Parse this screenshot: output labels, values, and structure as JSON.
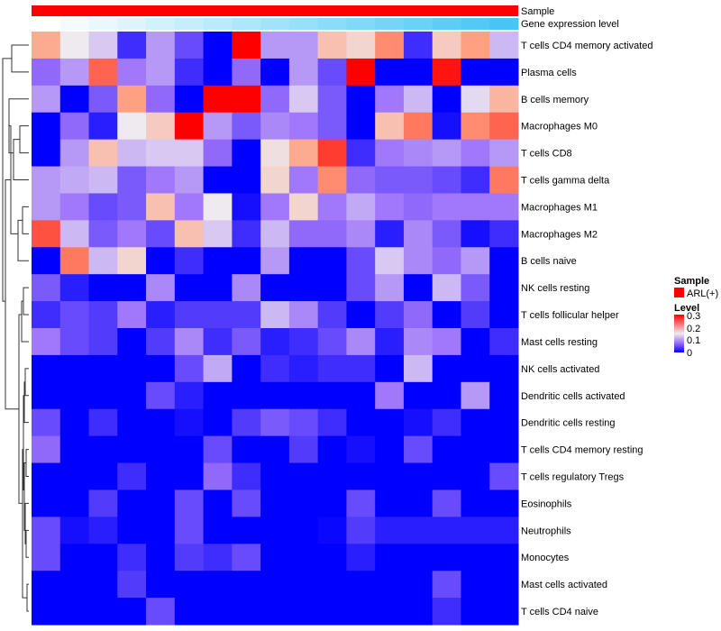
{
  "chart_data": {
    "type": "heatmap",
    "annotations": [
      {
        "name": "Sample",
        "legend_entries": [
          "ARL(+)"
        ],
        "color": "#ff0000"
      },
      {
        "name": "Gene expression level",
        "gradient": [
          "#ffffff",
          "#47c6f5"
        ]
      }
    ],
    "rows": [
      "T cells CD4 memory activated",
      "Plasma cells",
      "B cells memory",
      "Macrophages M0",
      "T cells CD8",
      "T cells gamma delta",
      "Macrophages M1",
      "Macrophages M2",
      "B cells naive",
      "NK cells resting",
      "T cells follicular helper",
      "Mast cells resting",
      "NK cells activated",
      "Dendritic cells activated",
      "Dendritic cells resting",
      "T cells CD4 memory resting",
      "T cells regulatory  Tregs",
      "Eosinophils",
      "Neutrophils",
      "Monocytes",
      "Mast cells activated",
      "T cells CD4 naive"
    ],
    "n_columns": 17,
    "values": [
      [
        0.21,
        0.15,
        0.13,
        0.03,
        0.1,
        0.05,
        0,
        0.3,
        0.1,
        0.1,
        0.19,
        0.17,
        0.23,
        0.03,
        0.18,
        0.22,
        0.12
      ],
      [
        0.07,
        0.1,
        0.25,
        0.08,
        0.1,
        0.03,
        0,
        0.07,
        0,
        0.1,
        0.05,
        0.3,
        0,
        0,
        0.29,
        0,
        0
      ],
      [
        0.1,
        0,
        0.06,
        0.22,
        0.07,
        0,
        0.3,
        0.3,
        0.07,
        0.13,
        0.06,
        0,
        0.08,
        0.12,
        0,
        0.14,
        0.2
      ],
      [
        0,
        0.07,
        0.02,
        0.15,
        0.18,
        0.3,
        0.1,
        0.06,
        0.09,
        0.08,
        0.06,
        0,
        0.19,
        0.24,
        0.01,
        0.23,
        0.25
      ],
      [
        0,
        0.1,
        0.19,
        0.12,
        0.13,
        0.13,
        0.07,
        0,
        0.16,
        0.21,
        0.27,
        0.03,
        0.08,
        0.09,
        0.1,
        0.08,
        0.1
      ],
      [
        0.1,
        0.11,
        0.12,
        0.06,
        0.08,
        0.1,
        0,
        0,
        0.17,
        0.08,
        0.23,
        0.07,
        0.06,
        0.06,
        0.05,
        0.03,
        0.24
      ],
      [
        0.1,
        0.08,
        0.05,
        0.06,
        0.19,
        0.08,
        0.15,
        0.01,
        0.08,
        0.17,
        0.08,
        0.11,
        0.08,
        0.07,
        0.08,
        0.08,
        0.08
      ],
      [
        0.26,
        0.12,
        0.06,
        0.08,
        0.05,
        0.19,
        0.13,
        0.03,
        0.12,
        0.07,
        0.07,
        0.09,
        0.02,
        0.09,
        0.06,
        0.01,
        0.03
      ],
      [
        0,
        0.24,
        0.12,
        0.17,
        0,
        0.03,
        0,
        0,
        0.1,
        0,
        0,
        0.05,
        0.13,
        0.09,
        0.07,
        0.1,
        0
      ],
      [
        0.06,
        0.02,
        0,
        0,
        0.09,
        0,
        0,
        0.09,
        0,
        0,
        0,
        0.05,
        0.1,
        0,
        0.12,
        0.06,
        0
      ],
      [
        0.03,
        0.05,
        0.04,
        0.08,
        0.02,
        0.04,
        0.04,
        0.04,
        0.12,
        0.09,
        0.04,
        0,
        0.04,
        0.07,
        0,
        0.04,
        0
      ],
      [
        0.08,
        0.05,
        0.04,
        0,
        0.04,
        0.09,
        0.03,
        0.06,
        0.02,
        0.03,
        0.05,
        0.09,
        0.02,
        0.09,
        0.08,
        0,
        0.03
      ],
      [
        0,
        0,
        0,
        0,
        0,
        0.05,
        0.11,
        0,
        0.03,
        0.02,
        0.03,
        0.03,
        0,
        0.12,
        0,
        0,
        0
      ],
      [
        0,
        0,
        0,
        0,
        0.05,
        0.02,
        0,
        0,
        0,
        0,
        0,
        0,
        0.08,
        0,
        0,
        0.1,
        0
      ],
      [
        0.05,
        0,
        0.03,
        0,
        0,
        0.01,
        0,
        0.04,
        0.06,
        0.05,
        0.03,
        0,
        0,
        0.01,
        0.03,
        0,
        0
      ],
      [
        0.07,
        0,
        0,
        0,
        0,
        0,
        0.05,
        0,
        0,
        0.04,
        0,
        0.01,
        0,
        0.05,
        0,
        0,
        0
      ],
      [
        0,
        0,
        0,
        0.03,
        0,
        0,
        0.07,
        0.03,
        0,
        0,
        0,
        0,
        0,
        0,
        0,
        0,
        0.05
      ],
      [
        0,
        0,
        0.04,
        0,
        0,
        0.05,
        0,
        0.05,
        0,
        0,
        0,
        0.05,
        0,
        0,
        0.05,
        0,
        0
      ],
      [
        0.05,
        0.01,
        0.02,
        0,
        0,
        0.05,
        0,
        0,
        0,
        0,
        0.005,
        0.04,
        0.02,
        0.02,
        0.02,
        0.02,
        0.02
      ],
      [
        0.05,
        0,
        0,
        0.03,
        0,
        0.04,
        0.03,
        0.05,
        0,
        0,
        0,
        0.02,
        0,
        0,
        0,
        0,
        0
      ],
      [
        0,
        0,
        0,
        0.04,
        0,
        0,
        0,
        0,
        0,
        0,
        0,
        0,
        0,
        0,
        0.05,
        0,
        0
      ],
      [
        0,
        0,
        0,
        0,
        0.05,
        0,
        0,
        0,
        0,
        0,
        0,
        0,
        0,
        0,
        0.03,
        0,
        0
      ]
    ],
    "color_scale": {
      "range": [
        0,
        0.3
      ],
      "low": "#0000ff",
      "mid": "#eeeaf0",
      "high": "#ff0000"
    },
    "legend": {
      "sample_title": "Sample",
      "sample_entry": "ARL(+)",
      "level_title": "Level",
      "level_ticks": [
        "0.3",
        "0.2",
        "0.1",
        "0"
      ]
    },
    "legend_placement": "right"
  }
}
